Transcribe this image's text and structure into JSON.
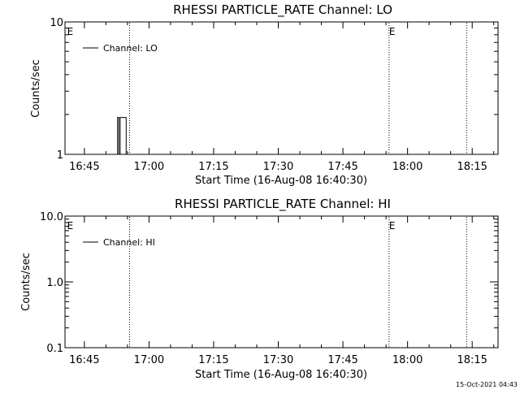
{
  "footer": {
    "timestamp": "15-Oct-2021 04:43"
  },
  "chart_data": [
    {
      "type": "line",
      "title": "RHESSI PARTICLE_RATE Channel: LO",
      "xlabel": "Start Time (16-Aug-08 16:40:30)",
      "ylabel": "Counts/sec",
      "y_scale": "log",
      "ylim": [
        1,
        10
      ],
      "y_ticks": [
        {
          "value": 1,
          "label": "1"
        },
        {
          "value": 10,
          "label": "10"
        }
      ],
      "x_ticks": [
        "16:45",
        "17:00",
        "17:15",
        "17:30",
        "17:45",
        "18:00",
        "18:15"
      ],
      "x_tick_minutes": [
        285,
        300,
        315,
        330,
        345,
        360,
        375
      ],
      "xlim_minutes": [
        280.5,
        381
      ],
      "legend": {
        "label": "Channel: LO",
        "placement": "top-left"
      },
      "eclipse_marker": "E",
      "vertical_lines_minutes": [
        295.5,
        355.7,
        373.7
      ],
      "eclipse_labels_minutes": [
        281,
        355.7
      ],
      "series": [
        {
          "name": "Channel: LO",
          "color": "#000000",
          "points": [
            {
              "t": 292.7,
              "y": 1
            },
            {
              "t": 292.7,
              "y": 1.9
            },
            {
              "t": 293.0,
              "y": 1.9
            },
            {
              "t": 293.0,
              "y": 1
            },
            {
              "t": 293.3,
              "y": 1
            },
            {
              "t": 293.3,
              "y": 1.9
            },
            {
              "t": 294.7,
              "y": 1.9
            },
            {
              "t": 294.7,
              "y": 1
            }
          ]
        }
      ]
    },
    {
      "type": "line",
      "title": "RHESSI PARTICLE_RATE Channel: HI",
      "xlabel": "Start Time (16-Aug-08 16:40:30)",
      "ylabel": "Counts/sec",
      "y_scale": "log",
      "ylim": [
        0.1,
        10
      ],
      "y_ticks": [
        {
          "value": 0.1,
          "label": "0.1"
        },
        {
          "value": 1,
          "label": "1.0"
        },
        {
          "value": 10,
          "label": "10.0"
        }
      ],
      "x_ticks": [
        "16:45",
        "17:00",
        "17:15",
        "17:30",
        "17:45",
        "18:00",
        "18:15"
      ],
      "x_tick_minutes": [
        285,
        300,
        315,
        330,
        345,
        360,
        375
      ],
      "xlim_minutes": [
        280.5,
        381
      ],
      "legend": {
        "label": "Channel: HI",
        "placement": "top-left"
      },
      "eclipse_marker": "E",
      "vertical_lines_minutes": [
        295.5,
        355.7,
        373.7
      ],
      "eclipse_labels_minutes": [
        281,
        355.7
      ],
      "series": [
        {
          "name": "Channel: HI",
          "color": "#000000",
          "points": []
        }
      ]
    }
  ]
}
